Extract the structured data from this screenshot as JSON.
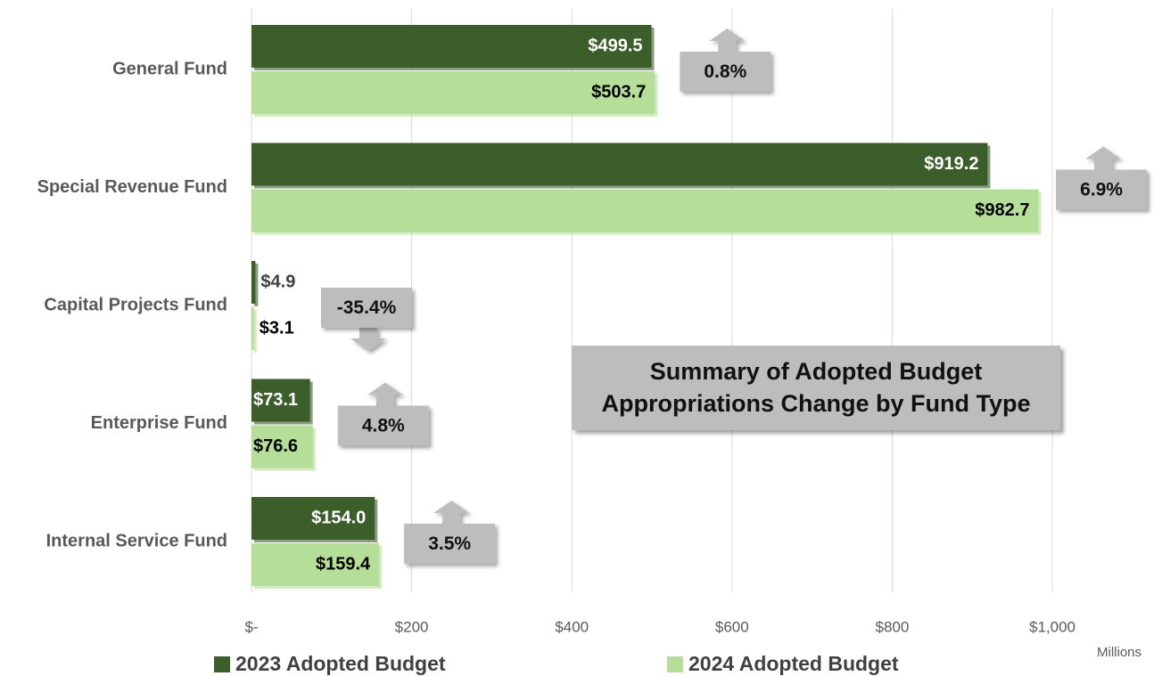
{
  "chart_data": {
    "type": "bar",
    "orientation": "horizontal",
    "title": "Summary of Adopted Budget Appropriations Change by Fund Type",
    "x_unit_label": "Millions",
    "categories": [
      "General Fund",
      "Special Revenue Fund",
      "Capital Projects Fund",
      "Enterprise Fund",
      "Internal Service Fund"
    ],
    "series": [
      {
        "name": "2023 Adopted Budget",
        "color": "#3b5e2b",
        "values": [
          499.5,
          919.2,
          4.9,
          73.1,
          154.0
        ],
        "value_labels": [
          "$499.5",
          "$919.2",
          "$4.9",
          "$73.1",
          "$154.0"
        ]
      },
      {
        "name": "2024 Adopted Budget",
        "color": "#b5de98",
        "values": [
          503.7,
          982.7,
          3.1,
          76.6,
          159.4
        ],
        "value_labels": [
          "$503.7",
          "$982.7",
          "$3.1",
          "$76.6",
          "$159.4"
        ]
      }
    ],
    "changes": [
      0.8,
      6.9,
      -35.4,
      4.8,
      3.5
    ],
    "change_labels": [
      "0.8%",
      "6.9%",
      "-35.4%",
      "4.8%",
      "3.5%"
    ],
    "xlim": [
      0,
      1000
    ],
    "xticks": [
      {
        "value": 0,
        "label": "$-"
      },
      {
        "value": 200,
        "label": "$200"
      },
      {
        "value": 400,
        "label": "$400"
      },
      {
        "value": 600,
        "label": "$600"
      },
      {
        "value": 800,
        "label": "$800"
      },
      {
        "value": 1000,
        "label": "$1,000"
      }
    ],
    "grid": true,
    "legend": "bottom"
  }
}
